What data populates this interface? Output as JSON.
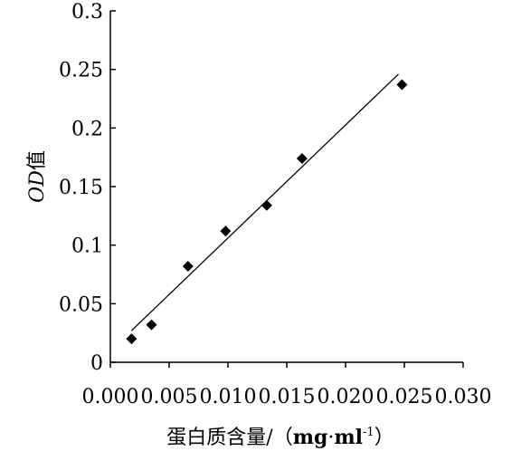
{
  "chart_data": {
    "type": "scatter",
    "title": "",
    "xlabel": "蛋白质含量/（mg·ml⁻¹）",
    "xlabel_parts": {
      "main": "蛋白质含量/（",
      "unit_a": "mg",
      "dot": "·",
      "unit_b": "ml",
      "exp": "-1",
      "close": "）"
    },
    "ylabel": "OD值",
    "ylabel_parts": {
      "italic": "OD",
      "rest": "值"
    },
    "xlim": [
      0.0,
      0.03
    ],
    "ylim": [
      0,
      0.3
    ],
    "x_ticks": [
      0.0,
      0.005,
      0.01,
      0.015,
      0.02,
      0.025,
      0.03
    ],
    "x_tick_labels": [
      "0.000",
      "0.005",
      "0.010",
      "0.015",
      "0.020",
      "0.025",
      "0.030"
    ],
    "y_ticks": [
      0,
      0.05,
      0.1,
      0.15,
      0.2,
      0.25,
      0.3
    ],
    "y_tick_labels": [
      "0",
      "0.05",
      "0.1",
      "0.15",
      "0.2",
      "0.25",
      "0.3"
    ],
    "grid": false,
    "series": [
      {
        "marker": "diamond",
        "x": [
          0.0018,
          0.0035,
          0.0066,
          0.0098,
          0.0133,
          0.0163,
          0.0248
        ],
        "y": [
          0.02,
          0.032,
          0.082,
          0.112,
          0.134,
          0.174,
          0.237
        ]
      }
    ],
    "trendline": {
      "x": [
        0.0018,
        0.0245
      ],
      "y": [
        0.027,
        0.246
      ]
    }
  }
}
